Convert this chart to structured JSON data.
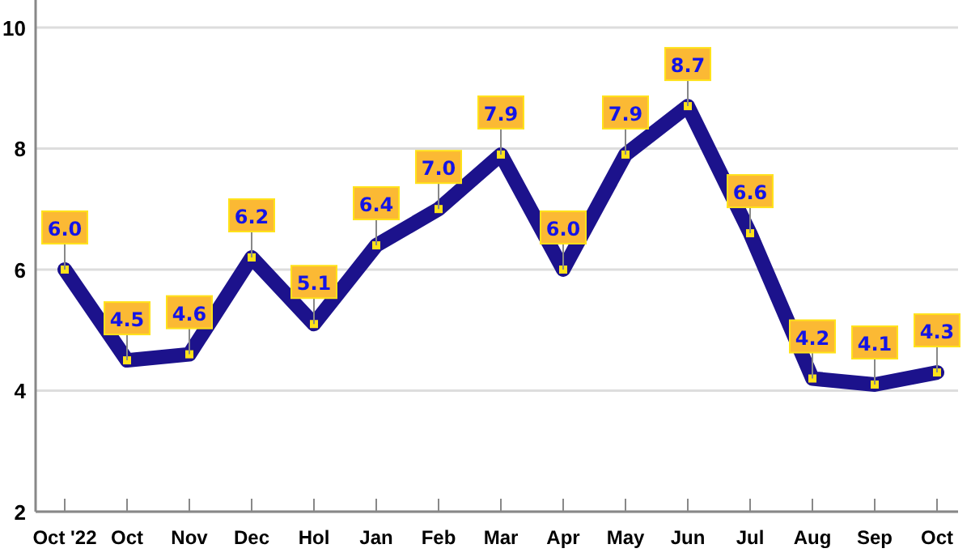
{
  "chart_data": {
    "type": "line",
    "categories": [
      "Oct '22",
      "Oct",
      "Nov",
      "Dec",
      "Hol",
      "Jan",
      "Feb",
      "Mar",
      "Apr",
      "May",
      "Jun",
      "Jul",
      "Aug",
      "Sep",
      "Oct"
    ],
    "series": [
      {
        "color": "#1c128c",
        "values": [
          6.0,
          4.5,
          4.6,
          6.2,
          5.1,
          6.4,
          7.0,
          7.9,
          6.0,
          7.9,
          8.7,
          6.6,
          4.2,
          4.1,
          4.3
        ],
        "value_labels": [
          "6.0",
          "4.5",
          "4.6",
          "6.2",
          "5.1",
          "6.4",
          "7.0",
          "7.9",
          "6.0",
          "7.9",
          "8.7",
          "6.6",
          "4.2",
          "4.1",
          "4.3"
        ]
      }
    ],
    "ylim": [
      2,
      10.4
    ],
    "yticks": [
      2,
      4,
      6,
      8,
      10
    ],
    "grid": "y",
    "marker": "square",
    "line_style": "solid"
  }
}
